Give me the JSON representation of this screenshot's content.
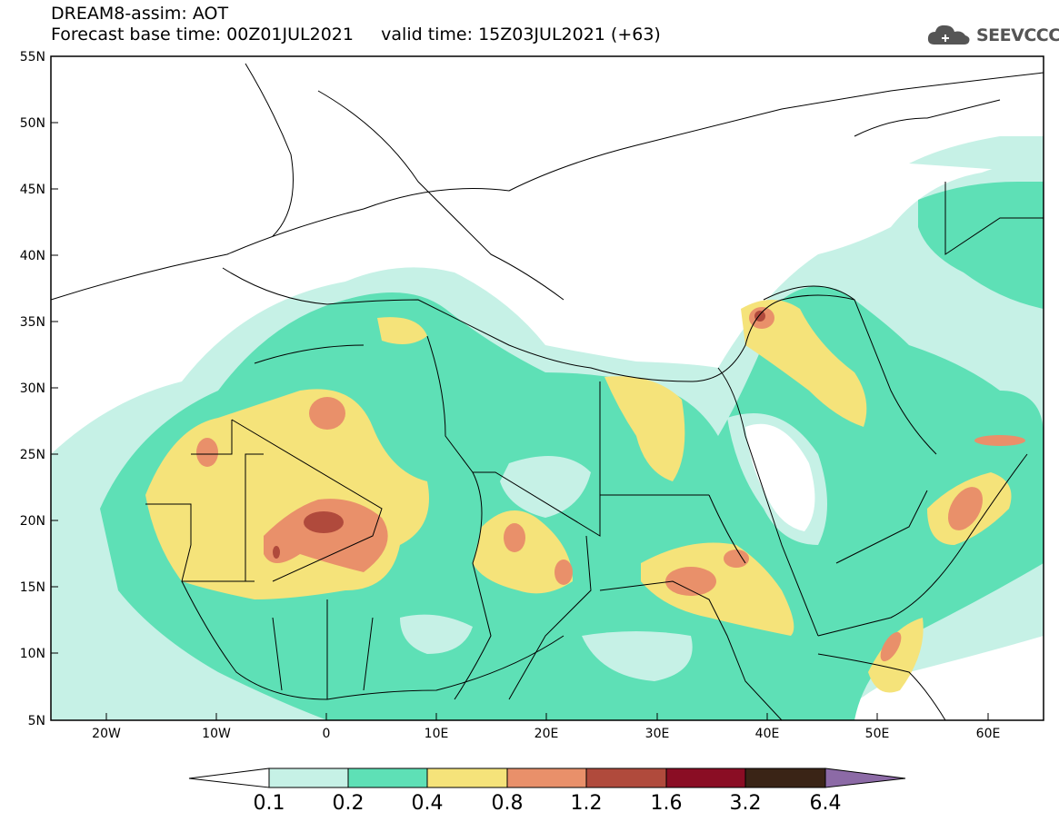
{
  "header": {
    "title_line1": "DREAM8-assim: AOT",
    "title_line2": "Forecast base time: 00Z01JUL2021     valid time: 15Z03JUL2021 (+63)",
    "logo_text": "SEEVCCC"
  },
  "map": {
    "lat_labels": [
      "55N",
      "50N",
      "45N",
      "40N",
      "35N",
      "30N",
      "25N",
      "20N",
      "15N",
      "10N",
      "5N"
    ],
    "lon_labels": [
      "20W",
      "10W",
      "0",
      "10E",
      "20E",
      "30E",
      "40E",
      "50E",
      "60E"
    ]
  },
  "colorbar": {
    "levels": [
      "0.1",
      "0.2",
      "0.4",
      "0.8",
      "1.2",
      "1.6",
      "3.2",
      "6.4"
    ],
    "colors": [
      "#ffffff",
      "#c6f1e6",
      "#5ee0b6",
      "#f5e37a",
      "#e9906a",
      "#b04a3c",
      "#8a0d24",
      "#3a2416",
      "#8c6aa6"
    ]
  }
}
